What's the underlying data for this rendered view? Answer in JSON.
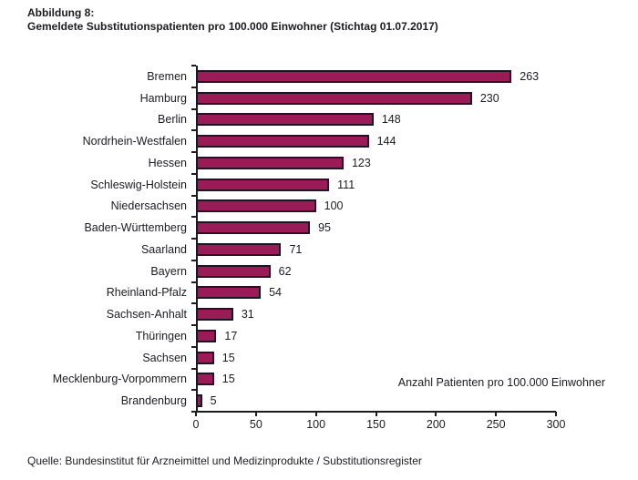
{
  "title": {
    "line1": "Abbildung 8:",
    "line2": "Gemeldete Substitutionspatienten pro 100.000 Einwohner (Stichtag 01.07.2017)"
  },
  "annotation": "Anzahl Patienten pro 100.000 Einwohner",
  "source": "Quelle: Bundesinstitut für Arzneimittel und Medizinprodukte / Substitutionsregister",
  "colors": {
    "bar_fill": "#9B1B56",
    "bar_border": "#221226",
    "text": "#1B1B22",
    "axis": "#1B1B22"
  },
  "chart_data": {
    "type": "bar",
    "orientation": "horizontal",
    "title": "Gemeldete Substitutionspatienten pro 100.000 Einwohner (Stichtag 01.07.2017)",
    "xlabel": "Anzahl Patienten pro 100.000 Einwohner",
    "ylabel": "",
    "categories": [
      "Bremen",
      "Hamburg",
      "Berlin",
      "Nordrhein-Westfalen",
      "Hessen",
      "Schleswig-Holstein",
      "Niedersachsen",
      "Baden-Württemberg",
      "Saarland",
      "Bayern",
      "Rheinland-Pfalz",
      "Sachsen-Anhalt",
      "Thüringen",
      "Sachsen",
      "Mecklenburg-Vorpommern",
      "Brandenburg"
    ],
    "values": [
      263,
      230,
      148,
      144,
      123,
      111,
      100,
      95,
      71,
      62,
      54,
      31,
      17,
      15,
      15,
      5
    ],
    "xlim": [
      0,
      300
    ],
    "x_ticks": [
      0,
      50,
      100,
      150,
      200,
      250,
      300
    ],
    "grid": false,
    "legend": false,
    "value_labels": true
  }
}
